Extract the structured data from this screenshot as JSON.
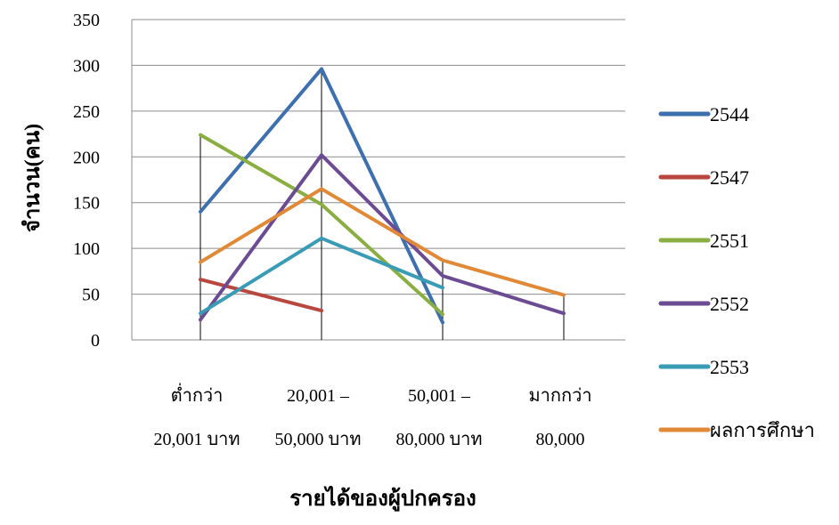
{
  "chart_data": {
    "type": "line",
    "title": "",
    "xlabel": "รายได้ของผู้ปกครอง",
    "ylabel": "จำนวน(คน)",
    "ylim": [
      0,
      350
    ],
    "yticks": [
      "0",
      "50",
      "100",
      "150",
      "200",
      "250",
      "300",
      "350"
    ],
    "grid": true,
    "legend_position": "right",
    "categories": [
      {
        "line1": "ต่ำกว่า",
        "line2": "20,001 บาท"
      },
      {
        "line1": "20,001 –",
        "line2": "50,000 บาท"
      },
      {
        "line1": "50,001 –",
        "line2": "80,000 บาท"
      },
      {
        "line1": "มากกว่า",
        "line2": "80,000"
      }
    ],
    "series": [
      {
        "name": "2544",
        "color": "#3E6FAE",
        "values": [
          140,
          296,
          19,
          null
        ]
      },
      {
        "name": "2547",
        "color": "#B8473F",
        "values": [
          66,
          32,
          null,
          null
        ]
      },
      {
        "name": "2551",
        "color": "#8BAE43",
        "values": [
          224,
          148,
          28,
          null
        ]
      },
      {
        "name": "2552",
        "color": "#6B4C93",
        "values": [
          22,
          202,
          70,
          29
        ]
      },
      {
        "name": "2553",
        "color": "#3A9BB5",
        "values": [
          29,
          111,
          57,
          null
        ]
      },
      {
        "name": "ผลการศึกษา",
        "color": "#E08A38",
        "values": [
          85,
          165,
          87,
          49
        ]
      }
    ]
  }
}
